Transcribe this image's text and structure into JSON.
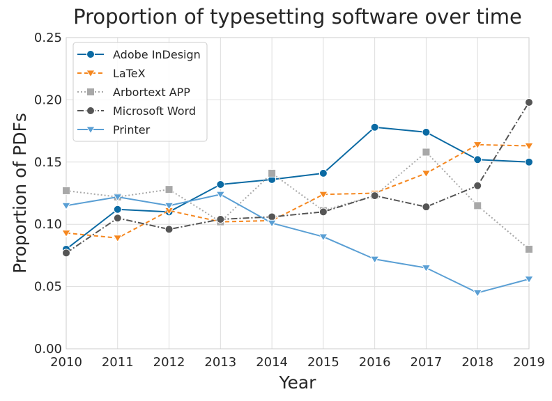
{
  "chart_data": {
    "type": "line",
    "title": "Proportion of typesetting software over time",
    "xlabel": "Year",
    "ylabel": "Proportion of PDFs",
    "x": [
      2010,
      2011,
      2012,
      2013,
      2014,
      2015,
      2016,
      2017,
      2018,
      2019
    ],
    "x_ticks": [
      "2010",
      "2011",
      "2012",
      "2013",
      "2014",
      "2015",
      "2016",
      "2017",
      "2018",
      "2019"
    ],
    "ylim": [
      0,
      0.25
    ],
    "y_ticks": [
      "0.00",
      "0.05",
      "0.10",
      "0.15",
      "0.20",
      "0.25"
    ],
    "y_tick_values": [
      0,
      0.05,
      0.1,
      0.15,
      0.2,
      0.25
    ],
    "grid": true,
    "legend_position": "top-left",
    "series": [
      {
        "name": "Adobe InDesign",
        "color": "#0b6aa3",
        "dash": "solid",
        "marker": "circle",
        "values": [
          0.08,
          0.112,
          0.11,
          0.132,
          0.136,
          0.141,
          0.178,
          0.174,
          0.152,
          0.15
        ]
      },
      {
        "name": "LaTeX",
        "color": "#f5871f",
        "dash": "dashed",
        "marker": "triangle-down",
        "values": [
          0.093,
          0.089,
          0.111,
          0.102,
          0.103,
          0.124,
          0.125,
          0.141,
          0.164,
          0.163
        ]
      },
      {
        "name": "Arbortext APP",
        "color": "#a8a8a8",
        "dash": "dotted",
        "marker": "square",
        "values": [
          0.127,
          0.122,
          0.128,
          0.102,
          0.141,
          0.111,
          0.123,
          0.158,
          0.115,
          0.08
        ]
      },
      {
        "name": "Microsoft Word",
        "color": "#555555",
        "dash": "dashdot",
        "marker": "circle",
        "values": [
          0.077,
          0.105,
          0.096,
          0.104,
          0.106,
          0.11,
          0.123,
          0.114,
          0.131,
          0.198
        ]
      },
      {
        "name": "Printer",
        "color": "#5a9fd4",
        "dash": "solid",
        "marker": "triangle-down",
        "values": [
          0.115,
          0.122,
          0.115,
          0.124,
          0.101,
          0.09,
          0.072,
          0.065,
          0.045,
          0.056
        ]
      }
    ]
  }
}
